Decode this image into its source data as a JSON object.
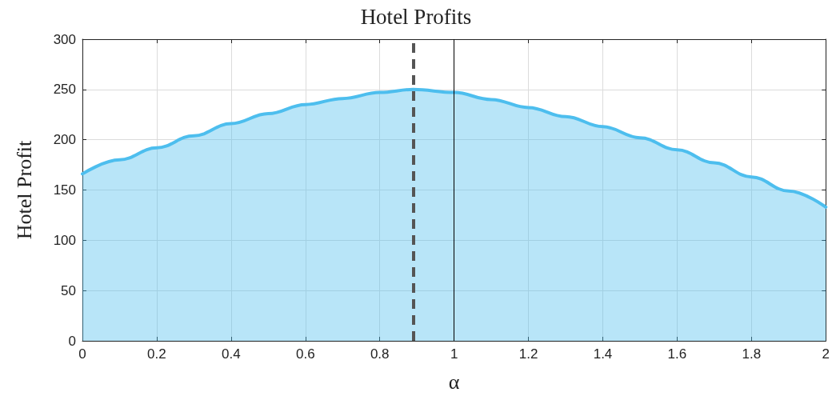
{
  "chart_data": {
    "type": "area",
    "title": "Hotel Profits",
    "xlabel": "α",
    "ylabel": "Hotel Profit",
    "x": [
      0,
      0.1,
      0.2,
      0.3,
      0.4,
      0.5,
      0.6,
      0.7,
      0.8,
      0.89,
      1.0,
      1.1,
      1.2,
      1.3,
      1.4,
      1.5,
      1.6,
      1.7,
      1.8,
      1.9,
      2.0
    ],
    "series": [
      {
        "color": "#4dbeee",
        "values": [
          166,
          180,
          192,
          204,
          216,
          226,
          235,
          241,
          247,
          250,
          247,
          240,
          232,
          223,
          213,
          202,
          190,
          177,
          163,
          149,
          133
        ]
      }
    ],
    "xlim": [
      0,
      2
    ],
    "xticks": [
      0,
      0.2,
      0.4,
      0.6,
      0.8,
      1,
      1.2,
      1.4,
      1.6,
      1.8,
      2
    ],
    "ylim": [
      0,
      300
    ],
    "yticks": [
      0,
      50,
      100,
      150,
      200,
      250,
      300
    ],
    "grid": true,
    "marker": "none",
    "line_style": "solid",
    "ref_lines": [
      {
        "axis": "x",
        "value": 0.89,
        "color": "#555555",
        "line_style": "dashed"
      },
      {
        "axis": "x",
        "value": 1,
        "color": "#000000",
        "line_style": "solid"
      }
    ]
  }
}
